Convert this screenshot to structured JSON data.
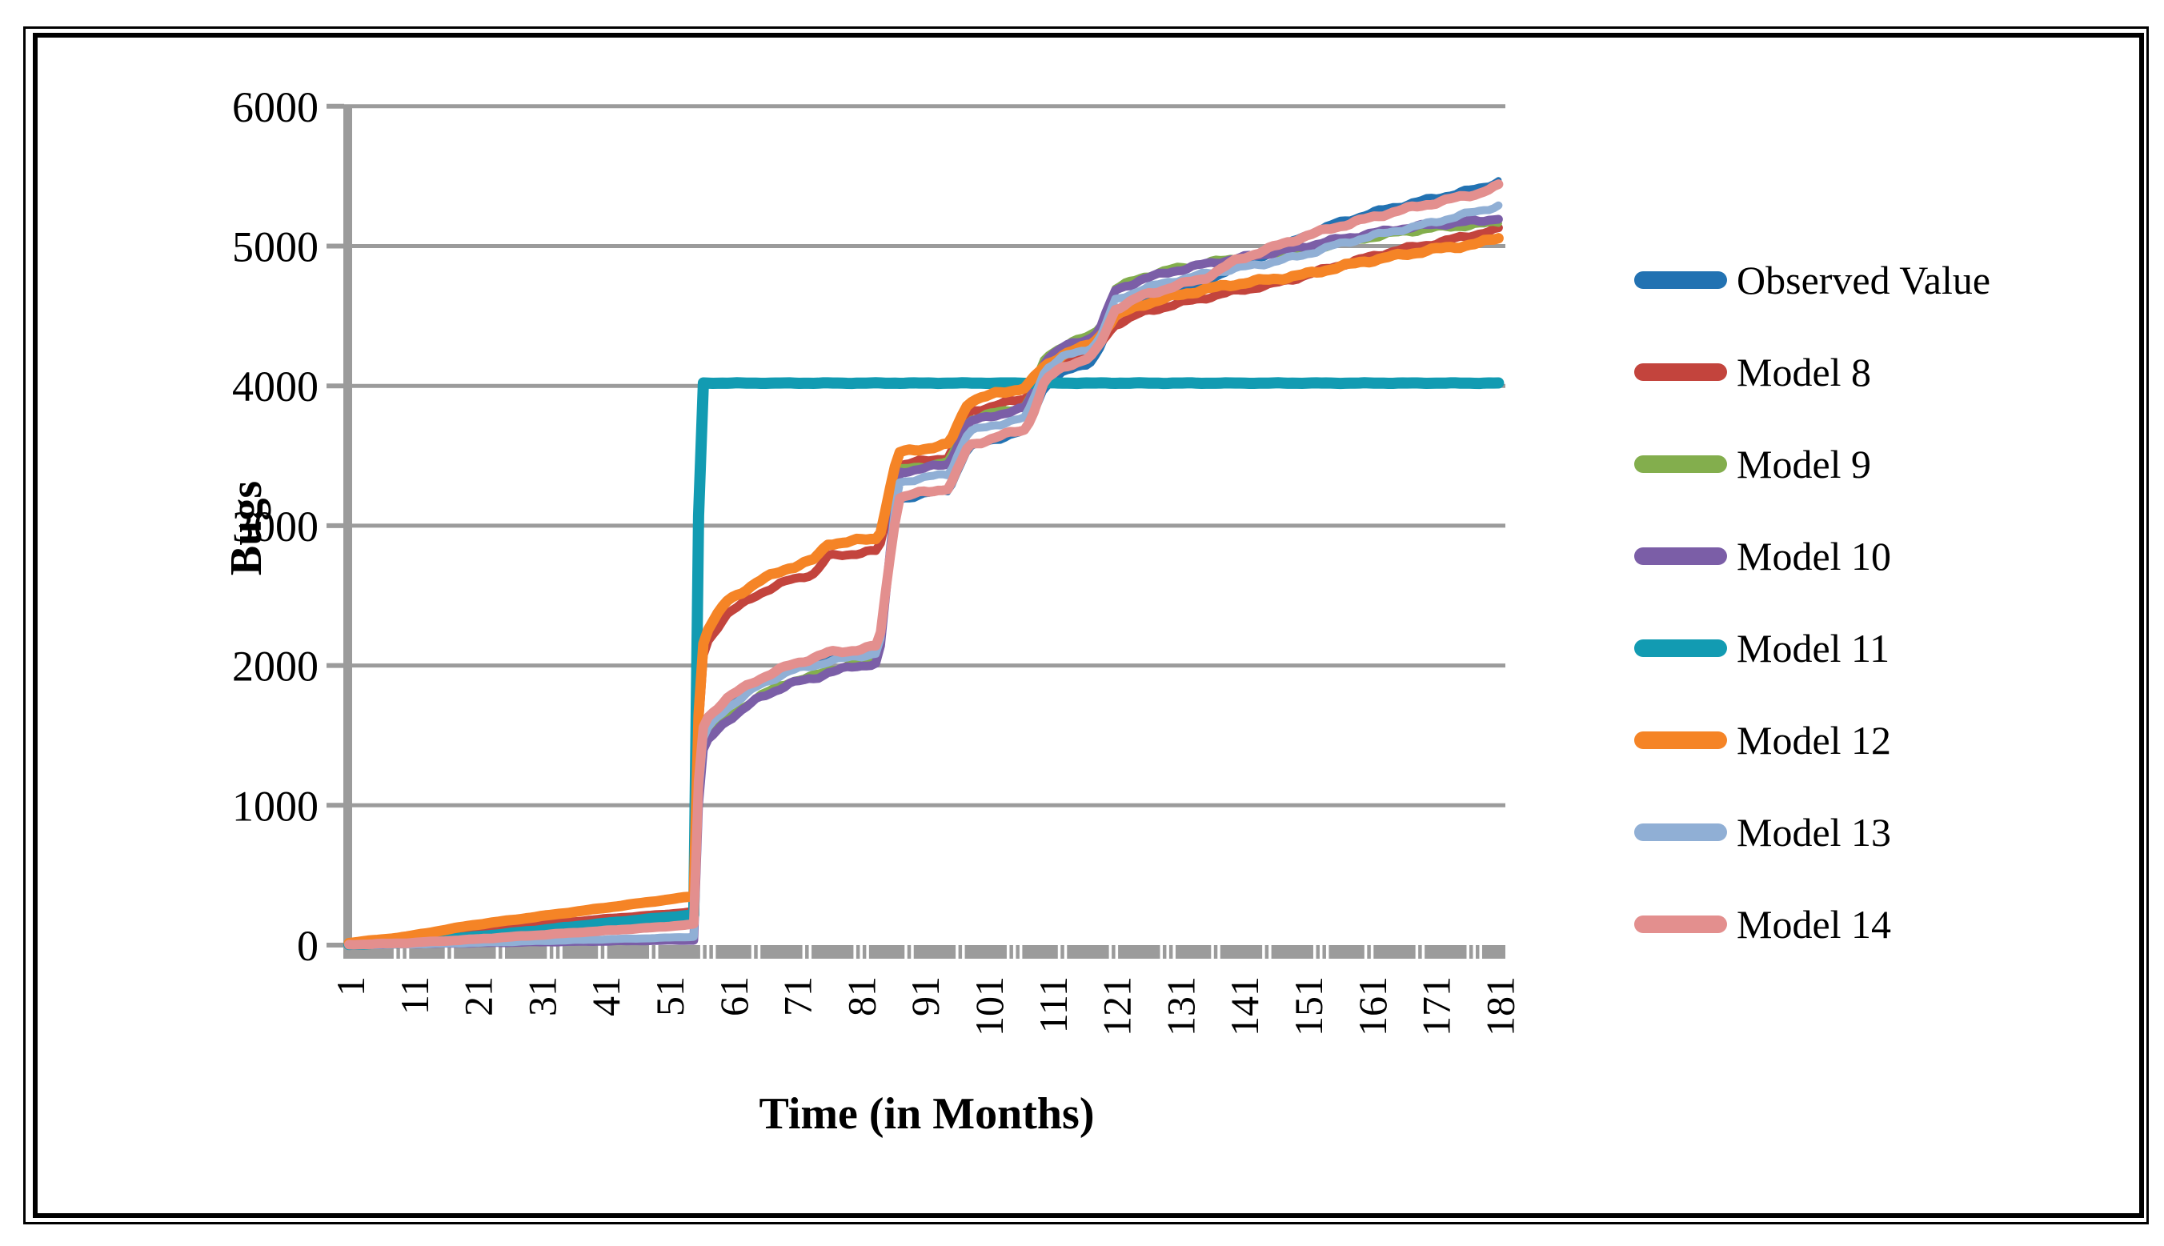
{
  "chart_data": {
    "type": "line",
    "title": "",
    "xlabel": "Time (in Months)",
    "ylabel": "Bugs",
    "xlim": [
      1,
      184
    ],
    "ylim": [
      0,
      6000
    ],
    "y_ticks": [
      0,
      1000,
      2000,
      3000,
      4000,
      5000,
      6000
    ],
    "x_ticks": [
      1,
      11,
      21,
      31,
      41,
      51,
      61,
      71,
      81,
      91,
      101,
      111,
      121,
      131,
      141,
      151,
      161,
      171,
      181
    ],
    "grid": "horizontal",
    "legend_position": "right",
    "axis_color": "#9b9b9b",
    "months": [
      1,
      10,
      20,
      30,
      40,
      50,
      55,
      56,
      57,
      60,
      65,
      70,
      74,
      76,
      80,
      84,
      85.5,
      87,
      90,
      95,
      96.5,
      98,
      102,
      107,
      108.5,
      110,
      113,
      117,
      118.5,
      121,
      125,
      130,
      135,
      140,
      145,
      150,
      155,
      160,
      165,
      170,
      175,
      178,
      181
    ],
    "series": [
      {
        "name": "Observed Value",
        "color": "#2272b2",
        "stroke_width": 8,
        "values": [
          2,
          12,
          35,
          62,
          92,
          122,
          142,
          1480,
          1600,
          1740,
          1880,
          1980,
          2040,
          2070,
          2090,
          2120,
          2680,
          3180,
          3210,
          3250,
          3400,
          3550,
          3610,
          3670,
          3830,
          3990,
          4090,
          4160,
          4240,
          4510,
          4600,
          4670,
          4730,
          4860,
          4940,
          5070,
          5160,
          5230,
          5290,
          5340,
          5390,
          5420,
          5470
        ]
      },
      {
        "name": "Model 8",
        "color": "#c3443d",
        "stroke_width": 11,
        "values": [
          10,
          35,
          90,
          140,
          185,
          220,
          240,
          1990,
          2160,
          2360,
          2510,
          2610,
          2660,
          2780,
          2800,
          2820,
          3120,
          3430,
          3455,
          3490,
          3650,
          3810,
          3860,
          3910,
          4000,
          4080,
          4170,
          4230,
          4290,
          4440,
          4520,
          4580,
          4630,
          4680,
          4720,
          4780,
          4850,
          4910,
          4970,
          5010,
          5060,
          5090,
          5120
        ]
      },
      {
        "name": "Model 9",
        "color": "#83ae4d",
        "stroke_width": 9,
        "values": [
          2,
          9,
          16,
          23,
          29,
          34,
          37,
          1350,
          1470,
          1620,
          1780,
          1890,
          1930,
          1970,
          2010,
          2040,
          2720,
          3400,
          3425,
          3460,
          3620,
          3760,
          3810,
          3860,
          4030,
          4210,
          4300,
          4360,
          4420,
          4700,
          4780,
          4840,
          4880,
          4920,
          4950,
          4960,
          5010,
          5050,
          5090,
          5120,
          5140,
          5150,
          5170
        ]
      },
      {
        "name": "Model 10",
        "color": "#7b5ea7",
        "stroke_width": 11,
        "values": [
          2,
          8,
          15,
          22,
          28,
          33,
          35,
          1330,
          1450,
          1600,
          1760,
          1870,
          1910,
          1950,
          1990,
          2020,
          2700,
          3380,
          3405,
          3440,
          3600,
          3740,
          3790,
          3840,
          4010,
          4190,
          4280,
          4340,
          4400,
          4680,
          4760,
          4820,
          4870,
          4910,
          4950,
          4990,
          5040,
          5080,
          5120,
          5150,
          5170,
          5180,
          5200
        ]
      },
      {
        "name": "Model 11",
        "color": "#129bb2",
        "stroke_width": 14,
        "values": [
          5,
          20,
          55,
          100,
          150,
          195,
          215,
          4020,
          4020,
          4020,
          4020,
          4020,
          4020,
          4020,
          4020,
          4020,
          4020,
          4020,
          4020,
          4020,
          4020,
          4020,
          4020,
          4020,
          4020,
          4020,
          4020,
          4020,
          4020,
          4020,
          4020,
          4020,
          4020,
          4020,
          4020,
          4020,
          4020,
          4020,
          4020,
          4020,
          4020,
          4020,
          4020
        ]
      },
      {
        "name": "Model 12",
        "color": "#f58426",
        "stroke_width": 13,
        "values": [
          15,
          60,
          140,
          200,
          260,
          320,
          350,
          2080,
          2250,
          2450,
          2600,
          2700,
          2760,
          2870,
          2890,
          2910,
          3220,
          3520,
          3545,
          3580,
          3740,
          3890,
          3940,
          3990,
          4070,
          4140,
          4230,
          4290,
          4350,
          4500,
          4580,
          4640,
          4690,
          4730,
          4760,
          4790,
          4840,
          4890,
          4930,
          4970,
          5000,
          5020,
          5060
        ]
      },
      {
        "name": "Model 13",
        "color": "#90afd5",
        "stroke_width": 10,
        "values": [
          1,
          5,
          15,
          28,
          40,
          52,
          60,
          1420,
          1540,
          1690,
          1850,
          1960,
          2000,
          2030,
          2060,
          2090,
          2710,
          3310,
          3335,
          3370,
          3530,
          3670,
          3720,
          3770,
          3950,
          4120,
          4210,
          4270,
          4330,
          4610,
          4690,
          4750,
          4800,
          4840,
          4880,
          4930,
          5000,
          5060,
          5110,
          5160,
          5220,
          5250,
          5290
        ]
      },
      {
        "name": "Model 14",
        "color": "#e38f8e",
        "stroke_width": 12,
        "values": [
          3,
          15,
          40,
          70,
          100,
          130,
          150,
          1500,
          1620,
          1760,
          1900,
          2000,
          2060,
          2090,
          2110,
          2140,
          2700,
          3200,
          3230,
          3270,
          3420,
          3570,
          3630,
          3690,
          3850,
          4040,
          4140,
          4200,
          4280,
          4550,
          4640,
          4710,
          4770,
          4900,
          4980,
          5060,
          5130,
          5190,
          5250,
          5300,
          5350,
          5380,
          5430
        ]
      }
    ]
  }
}
